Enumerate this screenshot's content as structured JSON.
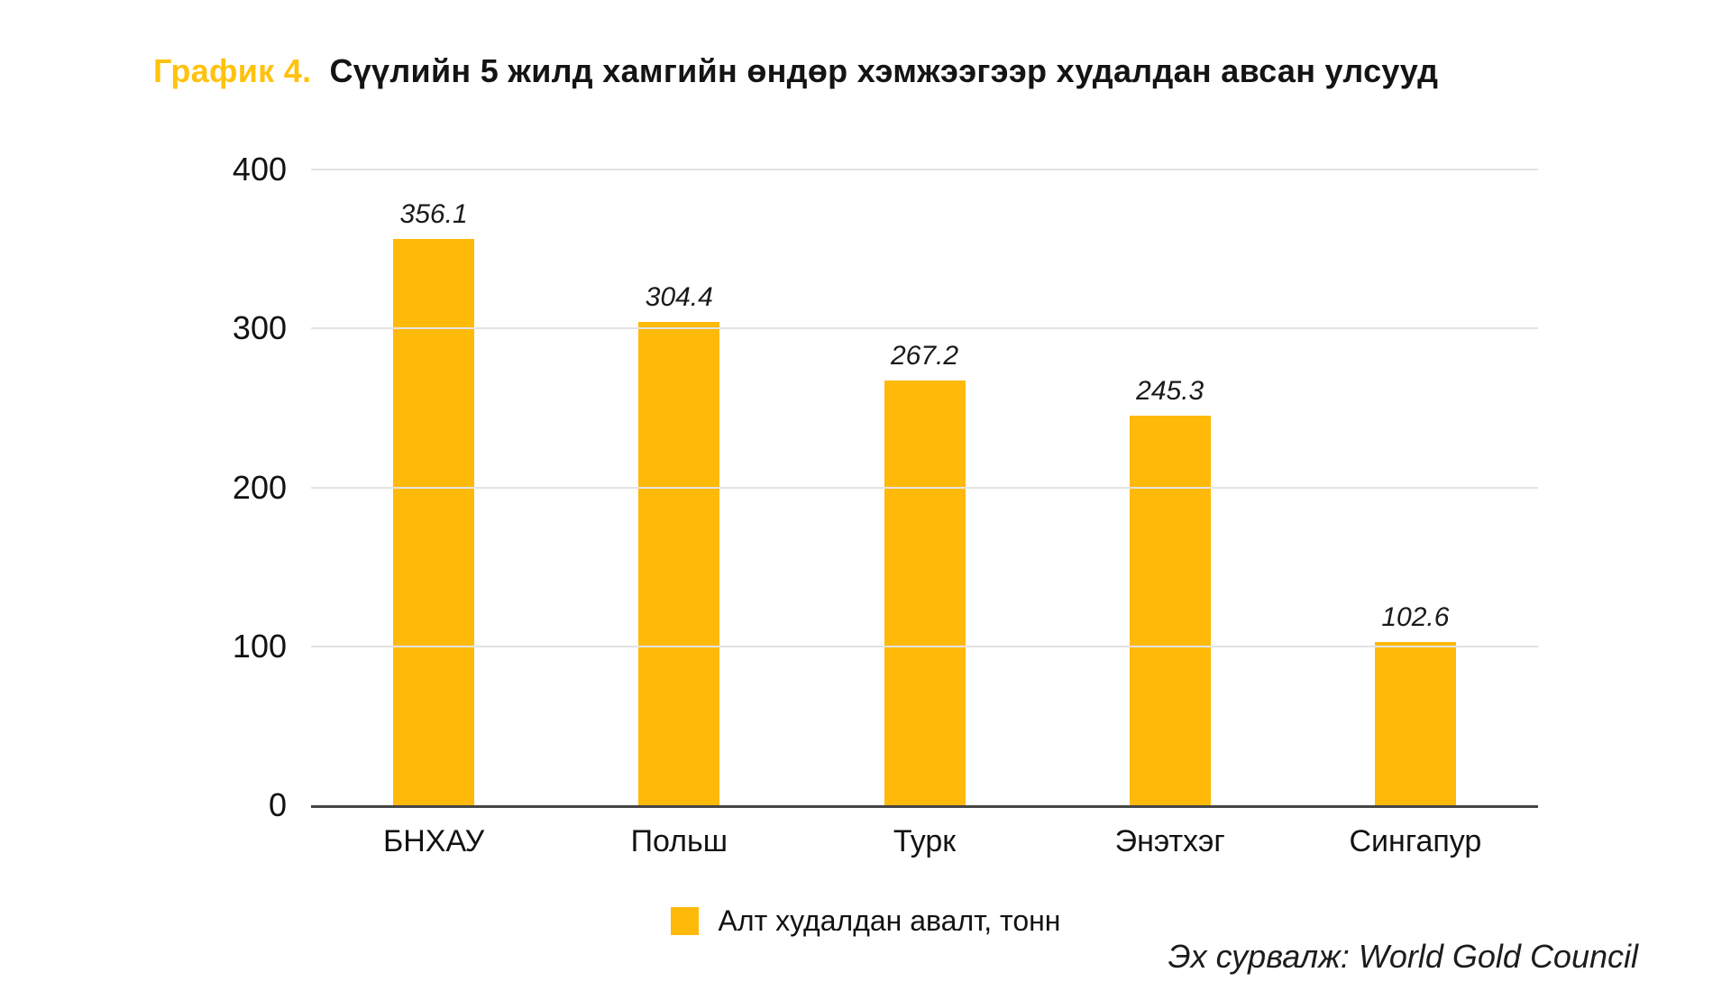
{
  "title": {
    "prefix": "График 4.",
    "text": "Сүүлийн 5 жилд хамгийн өндөр хэмжээгээр худалдан авсан улсууд"
  },
  "legend": {
    "label": "Алт худалдан авалт, тонн"
  },
  "source": "Эх сурвалж: World Gold Council",
  "colors": {
    "bar": "#FFB908",
    "title_accent": "#FFC20E",
    "gridline": "#E3E3E3",
    "axis": "#454545"
  },
  "chart_data": {
    "type": "bar",
    "title": "График 4. Сүүлийн 5 жилд хамгийн өндөр хэмжээгээр худалдан авсан улсууд",
    "categories": [
      "БНХАУ",
      "Польш",
      "Турк",
      "Энэтхэг",
      "Сингапур"
    ],
    "values": [
      356.1,
      304.4,
      267.2,
      245.3,
      102.6
    ],
    "value_labels": [
      "356.1",
      "304.4",
      "267.2",
      "245.3",
      "102.6"
    ],
    "series_name": "Алт худалдан авалт, тонн",
    "xlabel": "",
    "ylabel": "",
    "ylim": [
      0,
      400
    ],
    "yticks": [
      0,
      100,
      200,
      300,
      400
    ],
    "grid": true,
    "legend_position": "bottom",
    "bar_color": "#FFB908",
    "annotation": "Эх сурвалж: World Gold Council"
  }
}
